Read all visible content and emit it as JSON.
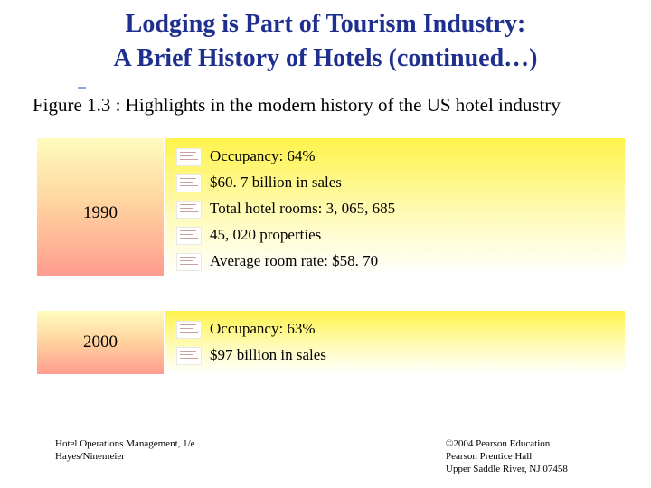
{
  "slide": {
    "title_line1": "Lodging is Part of Tourism Industry:",
    "title_line2": "A Brief History of Hotels (continued…)",
    "figure_caption": "Figure 1.3 : Highlights in the modern history of the US hotel industry"
  },
  "entries": [
    {
      "year": "1990",
      "items": [
        "Occupancy: 64%",
        "$60. 7 billion in sales",
        "Total hotel rooms: 3, 065, 685",
        "45, 020 properties",
        "Average room rate: $58. 70"
      ]
    },
    {
      "year": "2000",
      "items": [
        "Occupancy: 63%",
        "$97 billion in sales"
      ]
    }
  ],
  "footer": {
    "left_line1": "Hotel Operations Management, 1/e",
    "left_line2": "Hayes/Ninemeier",
    "right_line1": "©2004 Pearson Education",
    "right_line2": "Pearson Prentice Hall",
    "right_line3": "Upper Saddle River, NJ 07458"
  }
}
